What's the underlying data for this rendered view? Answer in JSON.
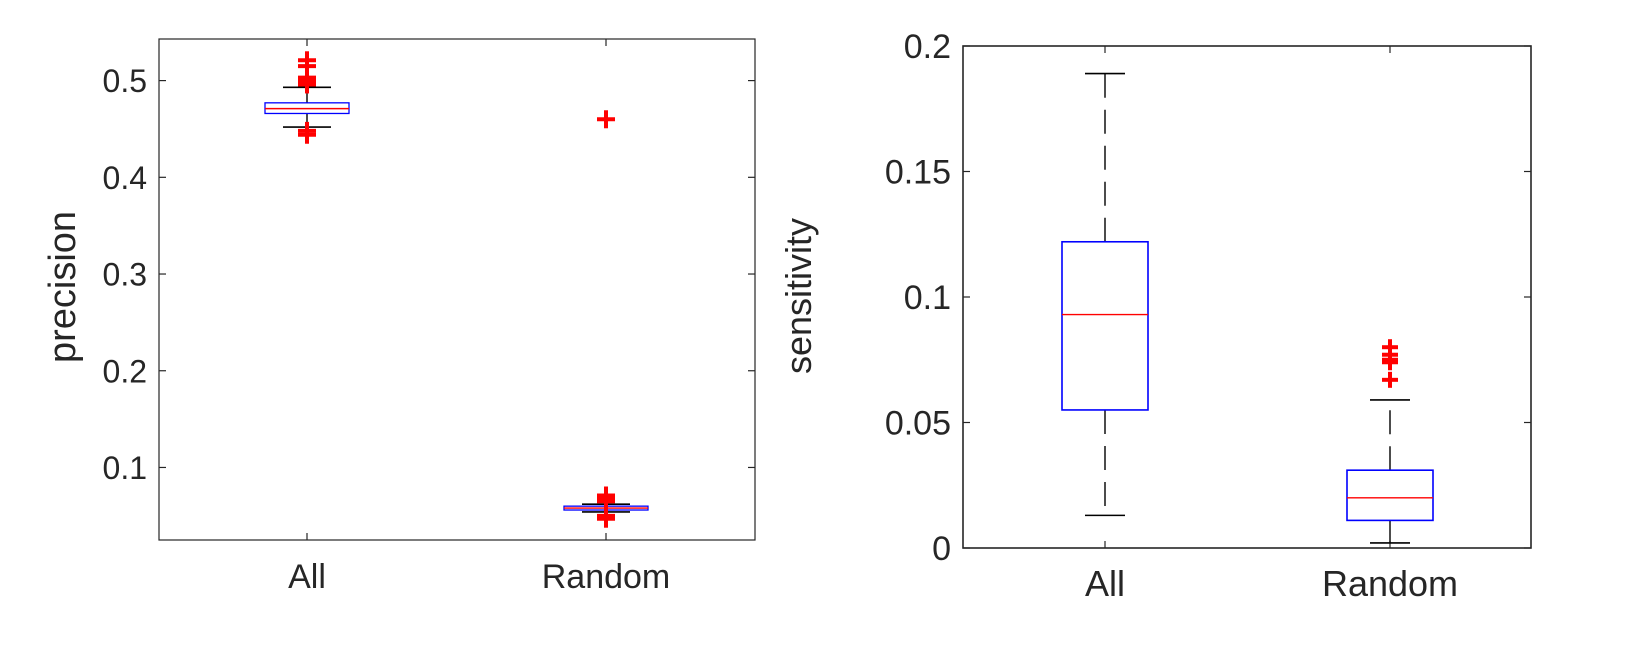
{
  "colors": {
    "box": "#0000ff",
    "median": "#ff0000",
    "whisker": "#000000",
    "outlier": "#ff0000",
    "axis": "#262626",
    "background": "#ffffff"
  },
  "chart_data": [
    {
      "type": "boxplot",
      "title": "",
      "xlabel": "",
      "ylabel": "precision",
      "categories": [
        "All",
        "Random"
      ],
      "ylim": [
        0.025,
        0.543
      ],
      "yticks": [
        0.1,
        0.2,
        0.3,
        0.4,
        0.5
      ],
      "ytick_labels": [
        "0.1",
        "0.2",
        "0.3",
        "0.4",
        "0.5"
      ],
      "grid": false,
      "boxes": [
        {
          "category": "All",
          "whisker_low": 0.452,
          "q1": 0.466,
          "median": 0.471,
          "q3": 0.477,
          "whisker_high": 0.493,
          "outliers": [
            0.521,
            0.515,
            0.503,
            0.5,
            0.498,
            0.496,
            0.448,
            0.444
          ]
        },
        {
          "category": "Random",
          "whisker_low": 0.054,
          "q1": 0.056,
          "median": 0.058,
          "q3": 0.06,
          "whisker_high": 0.062,
          "outliers": [
            0.46,
            0.071,
            0.068,
            0.065,
            0.05,
            0.047
          ]
        }
      ]
    },
    {
      "type": "boxplot",
      "title": "",
      "xlabel": "",
      "ylabel": "sensitivity",
      "categories": [
        "All",
        "Random"
      ],
      "ylim": [
        0,
        0.2
      ],
      "yticks": [
        0,
        0.05,
        0.1,
        0.15,
        0.2
      ],
      "ytick_labels": [
        "0",
        "0.05",
        "0.1",
        "0.15",
        "0.2"
      ],
      "grid": false,
      "boxes": [
        {
          "category": "All",
          "whisker_low": 0.013,
          "q1": 0.055,
          "median": 0.093,
          "q3": 0.122,
          "whisker_high": 0.189,
          "outliers": []
        },
        {
          "category": "Random",
          "whisker_low": 0.002,
          "q1": 0.011,
          "median": 0.02,
          "q3": 0.031,
          "whisker_high": 0.059,
          "outliers": [
            0.08,
            0.077,
            0.075,
            0.074,
            0.067
          ]
        }
      ]
    }
  ]
}
